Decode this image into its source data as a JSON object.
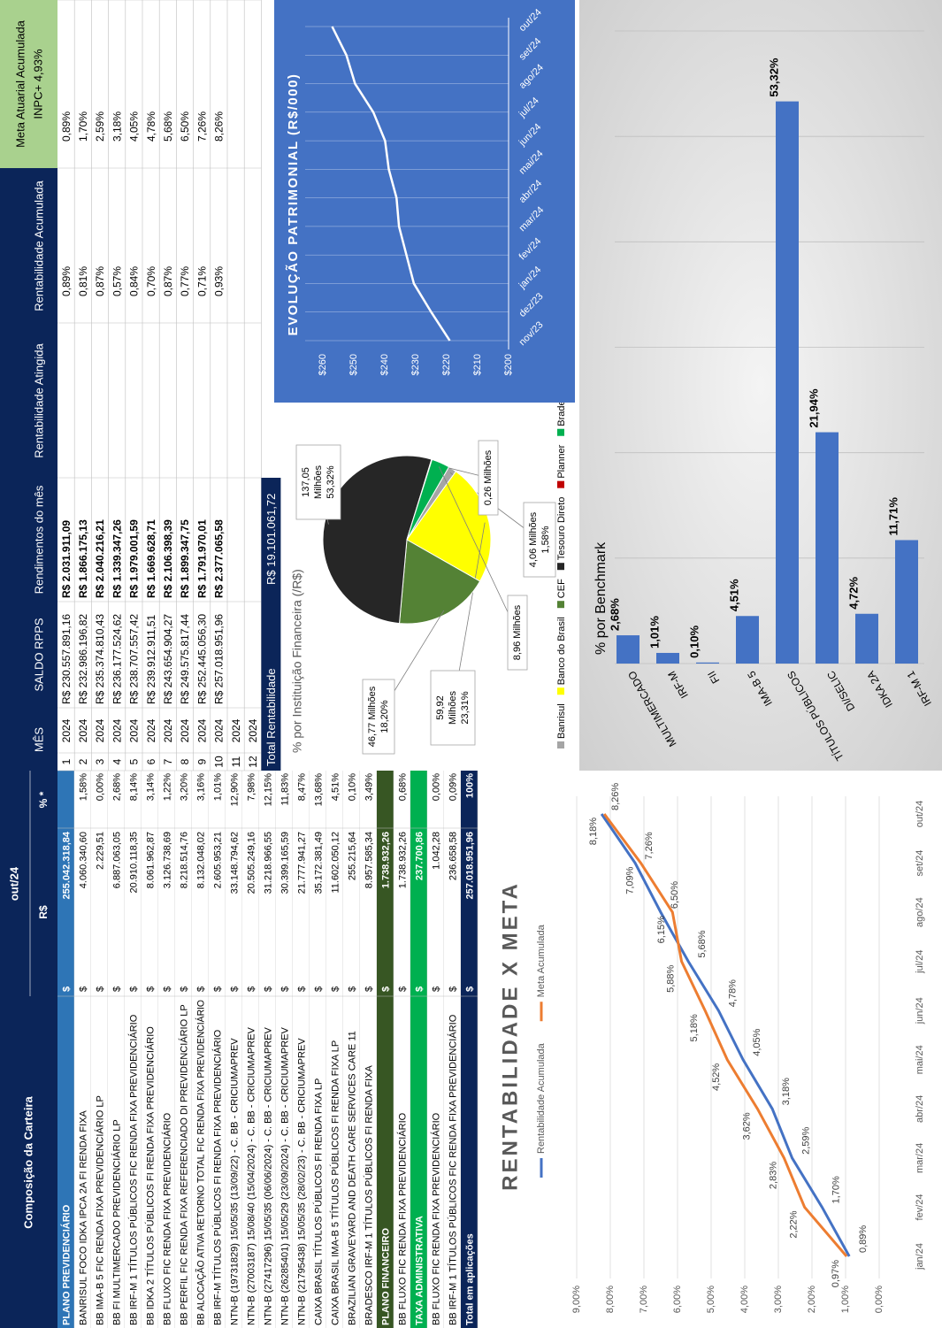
{
  "portfolio": {
    "header": {
      "title": "Composição da Carteira",
      "period": "out/24",
      "value_col": "R$",
      "pct_col": "% *"
    },
    "currency": "$",
    "rows": [
      {
        "name": "PLANO PREVIDENCIÁRIO",
        "value": "255.042.318,84",
        "color": "#2e75b6"
      },
      {
        "name": "BANRISUL FOCO IDKA IPCA 2A FI RENDA FIXA",
        "value": "4.060.340,60",
        "pct": "1,58%"
      },
      {
        "name": "BB IMA-B 5 FIC RENDA FIXA PREVIDENCIÁRIO LP",
        "value": "2.229,51",
        "pct": "0,00%"
      },
      {
        "name": "BB FI MULTIMERCADO PREVIDENCIÁRIO LP",
        "value": "6.887.063,05",
        "pct": "2,68%"
      },
      {
        "name": "BB IRF-M 1 TÍTULOS PÚBLICOS FIC RENDA FIXA PREVIDENCIÁRIO",
        "value": "20.910.118,35",
        "pct": "8,14%"
      },
      {
        "name": "BB IDKA 2 TÍTULOS PÚBLICOS FI RENDA FIXA PREVIDENCIÁRIO",
        "value": "8.061.962,87",
        "pct": "3,14%"
      },
      {
        "name": "BB FLUXO FIC RENDA FIXA PREVIDENCIÁRIO",
        "value": "3.126.738,69",
        "pct": "1,22%"
      },
      {
        "name": "BB PERFIL FIC RENDA FIXA REFERENCIADO DI PREVIDENCIÁRIO LP",
        "value": "8.218.514,76",
        "pct": "3,20%"
      },
      {
        "name": "BB ALOCAÇÃO ATIVA RETORNO TOTAL FIC RENDA FIXA PREVIDENCIÁRIO",
        "value": "8.132.048,02",
        "pct": "3,16%"
      },
      {
        "name": "BB IRF-M TÍTULOS PÚBLICOS FI RENDA FIXA PREVIDENCIÁRIO",
        "value": "2.605.953,21",
        "pct": "1,01%"
      },
      {
        "name": "NTN-B (19731829) 15/05/35 (13/09/22) - C. BB - CRICIUMAPREV",
        "value": "33.148.794,62",
        "pct": "12,90%"
      },
      {
        "name": "NTN-B (27003187) 15/08/40 (15/04/2024) - C. BB - CRICIUMAPREV",
        "value": "20.505.249,16",
        "pct": "7,98%"
      },
      {
        "name": "NTN-B (27417296) 15/05/35 (06/06/2024) - C. BB - CRICIUMAPREV",
        "value": "31.218.966,55",
        "pct": "12,15%"
      },
      {
        "name": "NTN-B (26285401) 15/05/29 (23/09/2024) - C. BB - CRICIUMAPREV",
        "value": "30.399.165,59",
        "pct": "11,83%"
      },
      {
        "name": "NTN-B (21795438) 15/05/35 (28/02/23) - C. BB - CRICIUMAPREV",
        "value": "21.777.941,27",
        "pct": "8,47%"
      },
      {
        "name": "CAIXA BRASIL TÍTULOS PÚBLICOS FI RENDA FIXA LP",
        "value": "35.172.381,49",
        "pct": "13,68%"
      },
      {
        "name": "CAIXA BRASIL IMA-B 5 TÍTULOS PÚBLICOS FI RENDA FIXA LP",
        "value": "11.602.050,12",
        "pct": "4,51%"
      },
      {
        "name": "BRAZILIAN GRAVEYARD AND DEATH CARE SERVICES CARE 11",
        "value": "255.215,64",
        "pct": "0,10%"
      },
      {
        "name": "BRADESCO IRF-M 1 TÍTULOS PÚBLICOS FI RENDA FIXA",
        "value": "8.957.585,34",
        "pct": "3,49%"
      },
      {
        "name": "PLANO FINANCEIRO",
        "value": "1.738.932,26",
        "color": "#375623"
      },
      {
        "name": "BB FLUXO FIC RENDA FIXA PREVIDENCIÁRIO",
        "value": "1.738.932,26",
        "pct": "0,68%"
      },
      {
        "name": "TAXA ADMINISTRATIVA",
        "value": "237.700,86",
        "color": "#00b050"
      },
      {
        "name": "BB FLUXO FIC RENDA FIXA PREVIDENCIÁRIO",
        "value": "1.042,28",
        "pct": "0,00%"
      },
      {
        "name": "BB IRF-M 1 TÍTULOS PÚBLICOS FIC RENDA FIXA PREVIDENCIÁRIO",
        "value": "236.658,58",
        "pct": "0,09%"
      },
      {
        "name": "Total em aplicações",
        "value": "257.018.951,96",
        "pct": "100%",
        "color": "#0b2559"
      }
    ]
  },
  "monthly": {
    "columns": [
      "MÊS",
      "SALDO RPPS",
      "Rendimentos do mês",
      "Rentabilidade Atingida",
      "Rentabilidade Acumulada"
    ],
    "meta_header": [
      "Meta Atuarial Acumulada",
      "INPC+ 4,93%"
    ],
    "rows": [
      [
        1,
        2024,
        "R$ 230.557.891,16",
        "R$ 2.031.911,09",
        "0,89%",
        "0,89%",
        "0,97%"
      ],
      [
        2,
        2024,
        "R$ 232.986.196,82",
        "R$ 1.866.175,13",
        "0,81%",
        "1,70%",
        "2,22%"
      ],
      [
        3,
        2024,
        "R$ 235.374.810,43",
        "R$ 2.040.216,21",
        "0,87%",
        "2,59%",
        "2,83%"
      ],
      [
        4,
        2024,
        "R$ 236.177.524,62",
        "R$ 1.339.347,26",
        "0,57%",
        "3,18%",
        "3,62%"
      ],
      [
        5,
        2024,
        "R$ 238.707.557,42",
        "R$ 1.979.001,59",
        "0,84%",
        "4,05%",
        "4,52%"
      ],
      [
        6,
        2024,
        "R$ 239.912.911,51",
        "R$ 1.669.628,71",
        "0,70%",
        "4,78%",
        "5,18%"
      ],
      [
        7,
        2024,
        "R$ 243.654.904,27",
        "R$ 2.106.398,39",
        "0,87%",
        "5,68%",
        "5,88%"
      ],
      [
        8,
        2024,
        "R$ 249.575.817,44",
        "R$ 1.899.347,75",
        "0,77%",
        "6,50%",
        "6,15%"
      ],
      [
        9,
        2024,
        "R$ 252.445.056,30",
        "R$ 1.791.970,01",
        "0,71%",
        "7,26%",
        "7,09%"
      ],
      [
        10,
        2024,
        "R$ 257.018.951,96",
        "R$ 2.377.065,58",
        "0,93%",
        "8,26%",
        "8,18%"
      ],
      [
        11,
        2024
      ],
      [
        12,
        2024
      ]
    ],
    "total": {
      "label": "Total Rentabilidade",
      "value": "R$ 19.101.061,72"
    }
  },
  "chart_data": [
    {
      "type": "pie",
      "title": "% por Instituição Financeira (/R$)",
      "categories": [
        "Banrisul",
        "Banco do Brasil",
        "CEF",
        "Tesouro Direto",
        "Planner",
        "Bradesco"
      ],
      "values": [
        4.06,
        59.92,
        46.77,
        137.05,
        0.26,
        8.96
      ],
      "value_labels": [
        [
          "4,06 Milhões",
          "1,58%"
        ],
        [
          "59,92",
          "Milhões",
          "23,31%"
        ],
        [
          "46,77 Milhões",
          "18,20%"
        ],
        [
          "137,05",
          "Milhões",
          "53,32%"
        ],
        [
          "0,26 Milhões"
        ],
        [
          "8,96 Milhões"
        ]
      ],
      "colors": [
        "#a5a5a5",
        "#ffff00",
        "#548235",
        "#262626",
        "#c00000",
        "#00b050"
      ],
      "legend": "bottom"
    },
    {
      "type": "line",
      "title": "EVOLUÇÃO PATRIMONIAL (R$/000)",
      "background": "#4472c4",
      "categories": [
        "nov/23",
        "dez/23",
        "jan/24",
        "fev/24",
        "mar/24",
        "abr/24",
        "mai/24",
        "jun/24",
        "jul/24",
        "ago/24",
        "set/24",
        "out/24"
      ],
      "values": [
        219,
        225,
        230.6,
        233,
        235.4,
        236.2,
        238.7,
        239.9,
        243.7,
        249.6,
        252.4,
        257
      ],
      "color": "#ffffff",
      "ylim": [
        200,
        260
      ],
      "yticks": [
        {
          "value": 200,
          "label": "$200"
        },
        {
          "value": 210,
          "label": "$210"
        },
        {
          "value": 220,
          "label": "$220"
        },
        {
          "value": 230,
          "label": "$230"
        },
        {
          "value": 240,
          "label": "$240"
        },
        {
          "value": 250,
          "label": "$250"
        },
        {
          "value": 260,
          "label": "$260"
        }
      ],
      "grid": false
    },
    {
      "type": "bar",
      "orientation": "horizontal",
      "title": "% por Benchmark",
      "categories": [
        "MULTIMERCADO",
        "IRF-M",
        "FII",
        "IMA-B 5",
        "TÍTULOS PÚBLICOS",
        "DI/SELIC",
        "IDKA 2A",
        "IRF-M 1"
      ],
      "values": [
        2.68,
        1.01,
        0.1,
        4.51,
        53.32,
        21.94,
        4.72,
        11.71
      ],
      "value_labels": [
        "2,68%",
        "1,01%",
        "0,10%",
        "4,51%",
        "53,32%",
        "21,94%",
        "4,72%",
        "11,71%"
      ],
      "color": "#4472c4",
      "xlim": [
        0,
        60
      ],
      "xticks": [
        0,
        10,
        20,
        30,
        40,
        50,
        60
      ],
      "tick_labels": false,
      "grid": true
    },
    {
      "type": "line",
      "title": "RENTABILIDADE X META",
      "categories": [
        "jan/24",
        "fev/24",
        "mar/24",
        "abr/24",
        "mai/24",
        "jun/24",
        "jul/24",
        "ago/24",
        "set/24",
        "out/24"
      ],
      "series": [
        {
          "name": "Rentabilidade Acumulada",
          "color": "#4472c4",
          "values": [
            0.89,
            1.7,
            2.59,
            3.18,
            4.05,
            4.78,
            5.68,
            6.5,
            7.26,
            8.26
          ],
          "value_labels": [
            "0,89%",
            "1,70%",
            "2,59%",
            "3,18%",
            "4,05%",
            "4,78%",
            "5,68%",
            "6,50%",
            "7,26%",
            "8,26%"
          ]
        },
        {
          "name": "Meta Acumulada",
          "color": "#ed7d31",
          "values": [
            0.97,
            2.22,
            2.83,
            3.62,
            4.52,
            5.18,
            5.88,
            6.15,
            7.09,
            8.18
          ],
          "value_labels": [
            "0,97%",
            "2,22%",
            "2,83%",
            "3,62%",
            "4,52%",
            "5,18%",
            "5,88%",
            "6,15%",
            "7,09%",
            "8,18%"
          ]
        }
      ],
      "ylim": [
        0,
        9
      ],
      "yticks": [
        {
          "value": 0,
          "label": "0,00%"
        },
        {
          "value": 1,
          "label": "1,00%"
        },
        {
          "value": 2,
          "label": "2,00%"
        },
        {
          "value": 3,
          "label": "3,00%"
        },
        {
          "value": 4,
          "label": "4,00%"
        },
        {
          "value": 5,
          "label": "5,00%"
        },
        {
          "value": 6,
          "label": "6,00%"
        },
        {
          "value": 7,
          "label": "7,00%"
        },
        {
          "value": 8,
          "label": "8,00%"
        },
        {
          "value": 9,
          "label": "9,00%"
        }
      ],
      "grid": true,
      "legend": "top"
    }
  ]
}
